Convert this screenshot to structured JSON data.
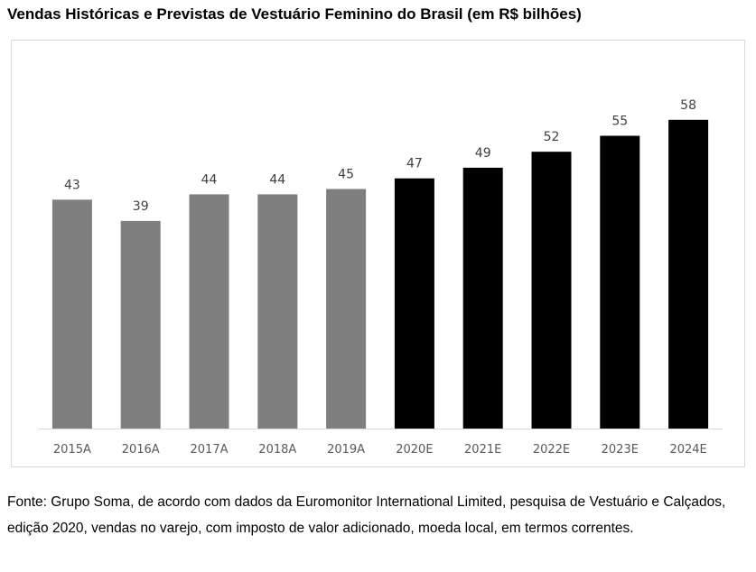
{
  "title": "Vendas Históricas e Previstas de Vestuário Feminino do Brasil (em R$ bilhões)",
  "source": "Fonte: Grupo Soma, de acordo com dados da Euromonitor International Limited, pesquisa de Vestuário e Calçados, edição 2020, vendas no varejo, com imposto de valor adicionado, moeda local, em termos correntes.",
  "colors": {
    "historical": "#7f7f7f",
    "forecast": "#000000",
    "axis": "#d9d9d9"
  },
  "chart_data": {
    "type": "bar",
    "title": "Vendas Históricas e Previstas de Vestuário Feminino do Brasil (em R$ bilhões)",
    "categories": [
      "2015A",
      "2016A",
      "2017A",
      "2018A",
      "2019A",
      "2020E",
      "2021E",
      "2022E",
      "2023E",
      "2024E"
    ],
    "values": [
      43,
      39,
      44,
      44,
      45,
      47,
      49,
      52,
      55,
      58
    ],
    "bar_kind": [
      "historical",
      "historical",
      "historical",
      "historical",
      "historical",
      "forecast",
      "forecast",
      "forecast",
      "forecast",
      "forecast"
    ],
    "ylim": [
      0,
      60
    ],
    "grid": false,
    "legend": "none",
    "data_labels": true
  }
}
